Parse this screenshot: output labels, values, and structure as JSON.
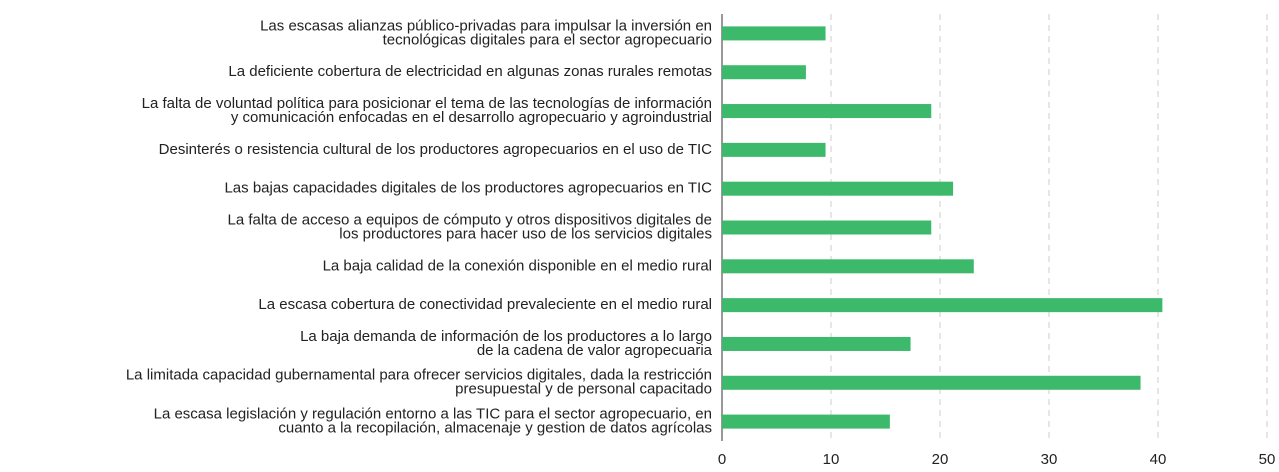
{
  "chart_data": {
    "type": "barh",
    "categories": [
      [
        "Las escasas alianzas público-privadas para impulsar la inversión en",
        "tecnológicas digitales para el sector agropecuario"
      ],
      [
        "La deficiente cobertura de electricidad en algunas zonas rurales remotas"
      ],
      [
        "La falta de voluntad política para posicionar el tema de las tecnologías de información",
        "y comunicación enfocadas en el desarrollo agropecuario y agroindustrial"
      ],
      [
        "Desinterés o resistencia cultural de los productores agropecuarios en el uso de TIC"
      ],
      [
        "Las bajas capacidades digitales de los productores agropecuarios en TIC"
      ],
      [
        "La falta de acceso a equipos de cómputo y otros dispositivos digitales de",
        "los productores para hacer uso de los servicios digitales"
      ],
      [
        "La baja calidad de la conexión disponible en el medio rural"
      ],
      [
        "La escasa cobertura de conectividad prevaleciente en el medio rural"
      ],
      [
        "La baja demanda de información de los productores a lo largo",
        "de la cadena de valor agropecuaria"
      ],
      [
        "La limitada capacidad gubernamental para ofrecer servicios digitales, dada la restricción",
        "presupuestal y de personal capacitado"
      ],
      [
        "La escasa legislación y regulación entorno a las TIC para el sector agropecuario, en",
        "cuanto a la recopilación, almacenaje y gestion de datos agrícolas"
      ]
    ],
    "values": [
      9.5,
      7.7,
      19.2,
      9.5,
      21.2,
      19.2,
      23.1,
      40.4,
      17.3,
      38.4,
      15.4
    ],
    "color": "#3cb96a",
    "xlim": [
      0,
      50
    ],
    "xticks": [
      0,
      10,
      20,
      30,
      40,
      50
    ],
    "grid": true
  }
}
